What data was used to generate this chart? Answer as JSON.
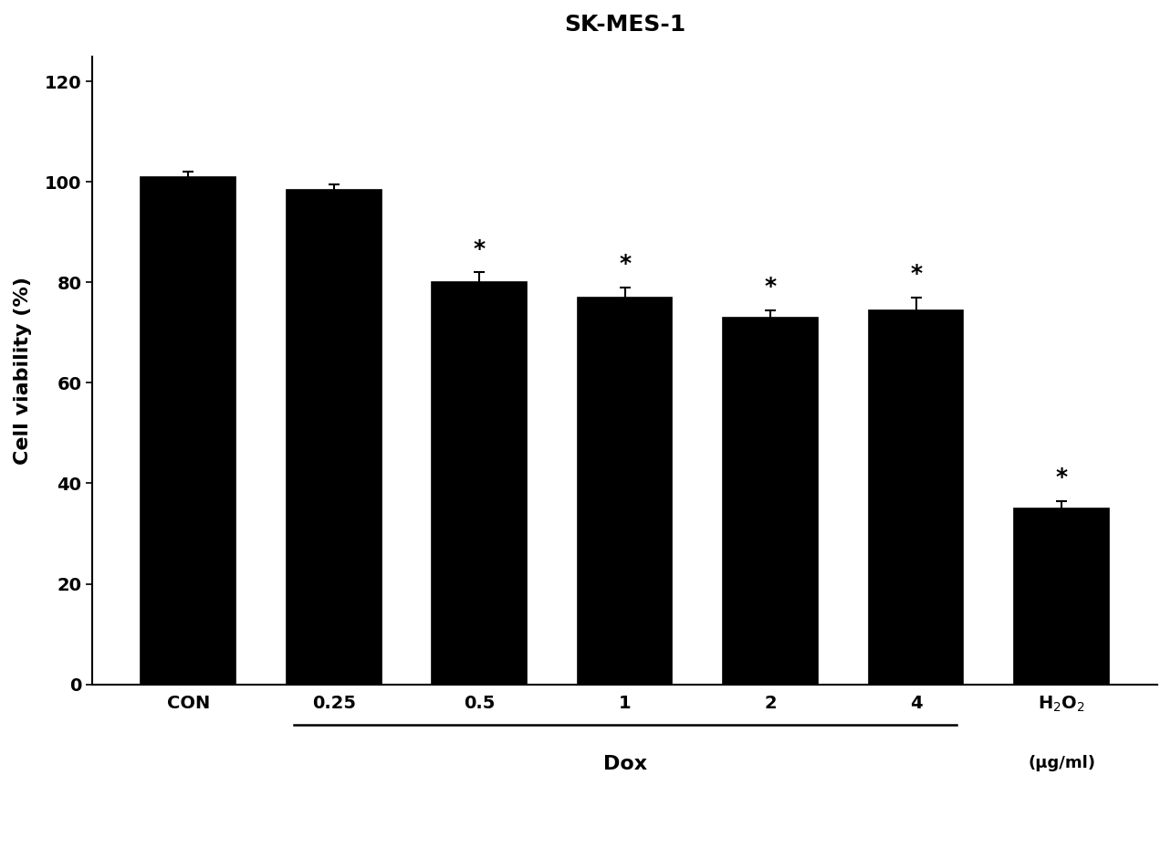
{
  "title": "SK-MES-1",
  "categories": [
    "CON",
    "0.25",
    "0.5",
    "1",
    "2",
    "4",
    "H$_2$O$_2$"
  ],
  "values": [
    101.0,
    98.5,
    80.0,
    77.0,
    73.0,
    74.5,
    35.0
  ],
  "errors": [
    1.0,
    1.0,
    2.0,
    2.0,
    1.5,
    2.5,
    1.5
  ],
  "significant": [
    false,
    false,
    true,
    true,
    true,
    true,
    true
  ],
  "bar_color": "#000000",
  "bar_edge_color": "#000000",
  "ylabel": "Cell viability (%)",
  "ylim": [
    0,
    125
  ],
  "yticks": [
    0,
    20,
    40,
    60,
    80,
    100,
    120
  ],
  "dox_label": "Dox",
  "dox_label_fontsize": 16,
  "ugml_label": "(μg/ml)",
  "title_fontsize": 18,
  "axis_label_fontsize": 16,
  "tick_fontsize": 14,
  "bar_width": 0.65,
  "figsize": [
    12.83,
    9.41
  ],
  "dpi": 100,
  "background_color": "#ffffff"
}
